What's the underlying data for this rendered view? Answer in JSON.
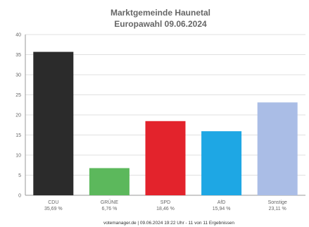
{
  "chart_data": {
    "type": "bar",
    "title": "Marktgemeinde Haunetal",
    "subtitle": "Europawahl 09.06.2024",
    "xlabel": "",
    "ylabel": "",
    "ylim": [
      0,
      40
    ],
    "yticks": [
      0,
      5,
      10,
      15,
      20,
      25,
      30,
      35,
      40
    ],
    "grid": true,
    "categories": [
      "CDU",
      "GRÜNE",
      "SPD",
      "AfD",
      "Sonstige"
    ],
    "values": [
      35.69,
      6.76,
      18.46,
      15.94,
      23.11
    ],
    "value_labels": [
      "35,69 %",
      "6,76 %",
      "18,46 %",
      "15,94 %",
      "23,11 %"
    ],
    "colors": [
      "#2b2b2b",
      "#5cb85c",
      "#e3232c",
      "#1ea7e4",
      "#aabde6"
    ]
  },
  "footer": "votemanager.de | 09.06.2024 19:22 Uhr - 11 von 11 Ergebnissen"
}
